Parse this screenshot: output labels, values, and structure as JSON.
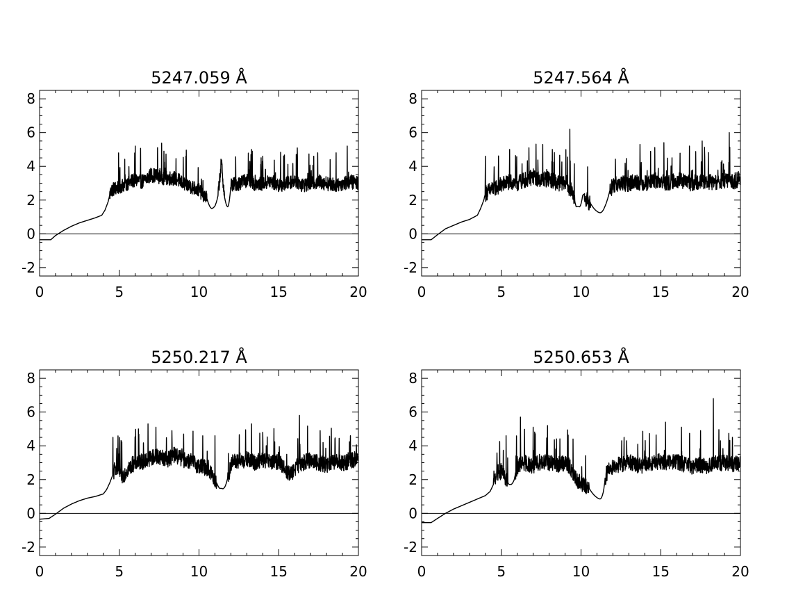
{
  "chart_data": [
    {
      "type": "line",
      "title": "5247.059 Å",
      "xlim": [
        0,
        20
      ],
      "ylim": [
        -2.5,
        8.5
      ],
      "xticks": [
        0,
        5,
        10,
        15,
        20
      ],
      "yticks": [
        -2,
        0,
        2,
        4,
        6,
        8
      ],
      "xtick_labels": [
        "0",
        "5",
        "10",
        "15",
        "20"
      ],
      "ytick_labels": [
        "-2",
        "0",
        "2",
        "4",
        "6",
        "8"
      ],
      "reference_line_y": 0,
      "series": [
        {
          "x": [
            0,
            0.7,
            1.0,
            1.5,
            2.0,
            2.5,
            3.0,
            3.5,
            3.9,
            4.1,
            4.3,
            4.4,
            4.5,
            5.0,
            5.5,
            6.0,
            6.5,
            7.0,
            7.5,
            8.0,
            8.5,
            9.0,
            9.5,
            10.0,
            10.5,
            10.8,
            11.0,
            11.2,
            11.4,
            11.6,
            11.8,
            12.0,
            12.5,
            13.0,
            13.5,
            14.0,
            14.5,
            15.0,
            15.5,
            16.0,
            16.5,
            17.0,
            17.5,
            18.0,
            18.5,
            19.0,
            19.5,
            20.0
          ],
          "y": [
            -0.35,
            -0.35,
            -0.1,
            0.2,
            0.45,
            0.65,
            0.8,
            0.95,
            1.1,
            1.4,
            1.9,
            2.3,
            2.6,
            2.8,
            3.0,
            3.2,
            3.1,
            3.5,
            3.4,
            3.3,
            3.3,
            3.0,
            2.8,
            2.6,
            2.1,
            1.6,
            1.8,
            2.3,
            4.3,
            2.2,
            1.7,
            2.9,
            3.0,
            3.2,
            3.0,
            3.0,
            3.1,
            2.9,
            3.0,
            3.2,
            2.9,
            3.0,
            3.1,
            3.0,
            2.9,
            3.0,
            3.1,
            3.0
          ],
          "noise_start": 4.4,
          "noise_amplitude": 0.8,
          "spikes": [
            [
              6.0,
              5.2
            ],
            [
              7.4,
              5.1
            ],
            [
              7.8,
              4.9
            ],
            [
              11.4,
              4.3
            ],
            [
              13.3,
              5.0
            ],
            [
              14.0,
              4.6
            ],
            [
              16.1,
              4.7
            ],
            [
              17.2,
              4.6
            ],
            [
              18.6,
              4.8
            ],
            [
              19.3,
              5.2
            ]
          ],
          "dips": [
            [
              10.8,
              10.5,
              11.2,
              1.5
            ],
            [
              11.8,
              11.6,
              12.0,
              1.6
            ]
          ]
        }
      ]
    },
    {
      "type": "line",
      "title": "5247.564 Å",
      "xlim": [
        0,
        20
      ],
      "ylim": [
        -2.5,
        8.5
      ],
      "xticks": [
        0,
        5,
        10,
        15,
        20
      ],
      "yticks": [
        -2,
        0,
        2,
        4,
        6,
        8
      ],
      "xtick_labels": [
        "0",
        "5",
        "10",
        "15",
        "20"
      ],
      "ytick_labels": [
        "-2",
        "0",
        "2",
        "4",
        "6",
        "8"
      ],
      "reference_line_y": 0,
      "series": [
        {
          "x": [
            0,
            0.6,
            1.0,
            1.5,
            2.0,
            2.5,
            3.0,
            3.5,
            3.7,
            3.9,
            4.0,
            4.5,
            5.0,
            5.5,
            6.0,
            6.5,
            7.0,
            7.5,
            8.0,
            8.5,
            9.0,
            9.5,
            9.7,
            9.9,
            10.1,
            10.3,
            10.6,
            11.0,
            11.2,
            11.5,
            12.0,
            12.5,
            13.0,
            13.5,
            14.0,
            14.5,
            15.0,
            15.5,
            16.0,
            16.5,
            17.0,
            17.5,
            18.0,
            18.5,
            19.0,
            19.5,
            20.0
          ],
          "y": [
            -0.35,
            -0.35,
            -0.05,
            0.3,
            0.5,
            0.7,
            0.85,
            1.1,
            1.5,
            2.0,
            2.4,
            2.7,
            2.9,
            3.1,
            3.0,
            3.2,
            3.4,
            3.2,
            3.3,
            3.0,
            3.1,
            2.4,
            1.6,
            1.7,
            2.6,
            2.1,
            1.8,
            1.5,
            1.3,
            2.0,
            2.9,
            3.0,
            3.0,
            3.1,
            3.0,
            3.2,
            3.1,
            3.0,
            3.2,
            3.1,
            3.0,
            3.2,
            3.1,
            3.0,
            3.2,
            3.1,
            3.3
          ],
          "noise_start": 4.0,
          "noise_amplitude": 0.9,
          "spikes": [
            [
              4.0,
              4.6
            ],
            [
              7.6,
              5.3
            ],
            [
              8.2,
              5.0
            ],
            [
              9.3,
              6.2
            ],
            [
              13.7,
              5.3
            ],
            [
              15.2,
              5.4
            ],
            [
              16.8,
              5.2
            ],
            [
              17.6,
              5.5
            ],
            [
              19.3,
              6.0
            ]
          ],
          "dips": [
            [
              9.9,
              9.6,
              10.2,
              1.6
            ],
            [
              11.2,
              10.6,
              11.8,
              1.25
            ]
          ]
        }
      ]
    },
    {
      "type": "line",
      "title": "5250.217 Å",
      "xlim": [
        0,
        20
      ],
      "ylim": [
        -2.5,
        8.5
      ],
      "xticks": [
        0,
        5,
        10,
        15,
        20
      ],
      "yticks": [
        -2,
        0,
        2,
        4,
        6,
        8
      ],
      "xtick_labels": [
        "0",
        "5",
        "10",
        "15",
        "20"
      ],
      "ytick_labels": [
        "-2",
        "0",
        "2",
        "4",
        "6",
        "8"
      ],
      "reference_line_y": 0,
      "series": [
        {
          "x": [
            0,
            0.6,
            1.0,
            1.5,
            2.0,
            2.5,
            3.0,
            3.5,
            4.0,
            4.2,
            4.4,
            4.6,
            4.8,
            5.0,
            5.2,
            5.5,
            6.0,
            6.5,
            7.0,
            7.5,
            8.0,
            8.5,
            9.0,
            9.5,
            10.0,
            10.5,
            11.0,
            11.3,
            11.6,
            11.9,
            12.0,
            12.5,
            13.0,
            13.5,
            14.0,
            14.5,
            15.0,
            15.5,
            15.8,
            16.0,
            16.5,
            17.0,
            17.5,
            18.0,
            18.5,
            19.0,
            19.5,
            20.0
          ],
          "y": [
            -0.35,
            -0.3,
            -0.05,
            0.3,
            0.55,
            0.75,
            0.9,
            1.0,
            1.15,
            1.4,
            1.8,
            2.3,
            2.8,
            2.5,
            2.2,
            2.6,
            3.0,
            3.1,
            3.3,
            3.4,
            3.2,
            3.5,
            3.2,
            3.1,
            2.8,
            2.7,
            2.0,
            1.5,
            1.7,
            2.3,
            3.0,
            3.1,
            3.2,
            3.0,
            3.2,
            3.0,
            3.1,
            2.5,
            2.3,
            2.7,
            3.0,
            3.2,
            3.0,
            2.9,
            3.1,
            3.0,
            3.1,
            3.3
          ],
          "noise_start": 4.6,
          "noise_amplitude": 0.9,
          "spikes": [
            [
              4.6,
              4.5
            ],
            [
              6.2,
              5.0
            ],
            [
              6.8,
              5.3
            ],
            [
              7.3,
              5.1
            ],
            [
              8.3,
              4.9
            ],
            [
              11.0,
              4.6
            ],
            [
              13.3,
              5.3
            ],
            [
              14.0,
              4.8
            ],
            [
              16.3,
              5.8
            ],
            [
              17.6,
              4.9
            ],
            [
              19.5,
              4.6
            ]
          ],
          "dips": [
            [
              11.5,
              11.1,
              11.8,
              1.45
            ]
          ]
        }
      ]
    },
    {
      "type": "line",
      "title": "5250.653 Å",
      "xlim": [
        0,
        20
      ],
      "ylim": [
        -2.5,
        8.5
      ],
      "xticks": [
        0,
        5,
        10,
        15,
        20
      ],
      "yticks": [
        -2,
        0,
        2,
        4,
        6,
        8
      ],
      "xtick_labels": [
        "0",
        "5",
        "10",
        "15",
        "20"
      ],
      "ytick_labels": [
        "-2",
        "0",
        "2",
        "4",
        "6",
        "8"
      ],
      "reference_line_y": 0,
      "series": [
        {
          "x": [
            0,
            0.6,
            1.0,
            1.5,
            2.0,
            2.5,
            3.0,
            3.5,
            4.0,
            4.3,
            4.5,
            4.7,
            5.0,
            5.3,
            5.5,
            5.8,
            6.0,
            6.5,
            7.0,
            7.5,
            8.0,
            8.5,
            9.0,
            9.3,
            9.5,
            10.0,
            10.5,
            11.0,
            11.2,
            11.4,
            11.6,
            12.0,
            12.5,
            13.0,
            13.5,
            14.0,
            14.5,
            15.0,
            15.5,
            16.0,
            16.5,
            17.0,
            17.5,
            18.0,
            18.5,
            19.0,
            19.5,
            20.0
          ],
          "y": [
            -0.55,
            -0.55,
            -0.3,
            0.0,
            0.25,
            0.45,
            0.65,
            0.85,
            1.05,
            1.3,
            1.7,
            2.4,
            2.5,
            2.0,
            1.7,
            2.1,
            2.8,
            3.0,
            2.8,
            3.1,
            3.0,
            2.9,
            3.0,
            2.8,
            2.2,
            1.8,
            1.5,
            1.15,
            0.9,
            1.5,
            2.4,
            2.8,
            2.9,
            3.1,
            2.8,
            2.9,
            3.0,
            3.1,
            3.0,
            3.1,
            2.9,
            2.8,
            2.9,
            2.8,
            3.0,
            3.0,
            2.9,
            3.0
          ],
          "noise_start": 4.5,
          "noise_amplitude": 0.9,
          "spikes": [
            [
              5.3,
              4.6
            ],
            [
              6.2,
              5.7
            ],
            [
              7.0,
              5.1
            ],
            [
              7.9,
              5.2
            ],
            [
              9.5,
              4.4
            ],
            [
              12.7,
              4.5
            ],
            [
              15.3,
              5.4
            ],
            [
              16.3,
              5.1
            ],
            [
              17.5,
              4.9
            ],
            [
              18.3,
              6.8
            ],
            [
              19.5,
              4.5
            ]
          ],
          "dips": [
            [
              5.6,
              5.4,
              5.9,
              1.7
            ],
            [
              11.2,
              10.5,
              11.5,
              0.85
            ]
          ]
        }
      ]
    }
  ]
}
